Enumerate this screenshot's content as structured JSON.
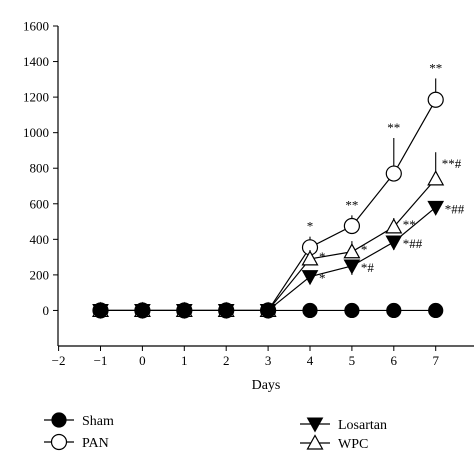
{
  "chart_data": {
    "type": "line",
    "xlabel": "Days",
    "ylabel": "",
    "xlim": [
      -2,
      7.6
    ],
    "ylim": [
      -200,
      1600
    ],
    "x_ticks": [
      -2,
      -1,
      0,
      1,
      2,
      3,
      4,
      5,
      6,
      7
    ],
    "y_ticks": [
      0,
      200,
      400,
      600,
      800,
      1000,
      1200,
      1400,
      1600
    ],
    "x": [
      -1,
      0,
      1,
      2,
      3,
      4,
      5,
      6,
      7
    ],
    "series": [
      {
        "name": "Sham",
        "marker": "filled-circle",
        "values": [
          0,
          0,
          0,
          0,
          0,
          0,
          0,
          0,
          0
        ],
        "errors": [
          0,
          0,
          0,
          0,
          0,
          0,
          0,
          0,
          0
        ],
        "annotations": [
          "",
          "",
          "",
          "",
          "",
          "",
          "",
          "",
          ""
        ]
      },
      {
        "name": "PAN",
        "marker": "open-circle",
        "values": [
          0,
          0,
          0,
          0,
          0,
          355,
          475,
          770,
          1185
        ],
        "errors": [
          0,
          0,
          0,
          0,
          0,
          60,
          60,
          200,
          120
        ],
        "annotations": [
          "",
          "",
          "",
          "",
          "",
          "*",
          "**",
          "**",
          "**"
        ]
      },
      {
        "name": "Losartan",
        "marker": "filled-triangle-down",
        "values": [
          0,
          0,
          0,
          0,
          0,
          190,
          250,
          385,
          580
        ],
        "errors": [
          0,
          0,
          0,
          0,
          0,
          40,
          50,
          45,
          40
        ],
        "annotations": [
          "",
          "",
          "",
          "",
          "",
          "*",
          "*#",
          "*##",
          "*##"
        ]
      },
      {
        "name": "WPC",
        "marker": "open-triangle-up",
        "values": [
          0,
          0,
          0,
          0,
          0,
          290,
          330,
          470,
          740
        ],
        "errors": [
          0,
          0,
          0,
          0,
          0,
          50,
          60,
          50,
          150
        ],
        "annotations": [
          "",
          "",
          "",
          "",
          "",
          "*",
          "*",
          "**",
          "**#"
        ]
      }
    ]
  }
}
